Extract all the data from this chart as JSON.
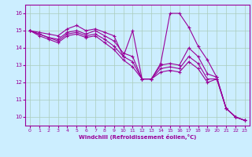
{
  "xlabel": "Windchill (Refroidissement éolien,°C)",
  "bg_color": "#cceeff",
  "line_color": "#990099",
  "grid_color": "#aaccbb",
  "xlim": [
    -0.5,
    23.5
  ],
  "ylim": [
    9.5,
    16.5
  ],
  "yticks": [
    10,
    11,
    12,
    13,
    14,
    15,
    16
  ],
  "xticks": [
    0,
    1,
    2,
    3,
    4,
    5,
    6,
    7,
    8,
    9,
    10,
    11,
    12,
    13,
    14,
    15,
    16,
    17,
    18,
    19,
    20,
    21,
    22,
    23
  ],
  "lines": [
    {
      "x": [
        0,
        1,
        2,
        3,
        4,
        5,
        6,
        7,
        8,
        9,
        10,
        11,
        12,
        13,
        14,
        15,
        16,
        17,
        18,
        19,
        20,
        21,
        22,
        23
      ],
      "y": [
        15.0,
        14.9,
        14.8,
        14.7,
        15.1,
        15.3,
        15.0,
        15.1,
        14.9,
        14.7,
        13.5,
        15.0,
        12.2,
        12.2,
        13.1,
        16.0,
        16.0,
        15.2,
        14.1,
        13.3,
        12.3,
        10.5,
        10.0,
        9.8
      ]
    },
    {
      "x": [
        0,
        1,
        2,
        3,
        4,
        5,
        6,
        7,
        8,
        9,
        10,
        11,
        12,
        13,
        14,
        15,
        16,
        17,
        18,
        19,
        20,
        21,
        22,
        23
      ],
      "y": [
        15.0,
        14.8,
        14.6,
        14.5,
        14.9,
        15.0,
        14.8,
        15.0,
        14.7,
        14.4,
        13.7,
        13.5,
        12.2,
        12.2,
        13.0,
        13.1,
        13.0,
        14.0,
        13.5,
        12.5,
        12.3,
        10.5,
        10.0,
        9.8
      ]
    },
    {
      "x": [
        0,
        1,
        2,
        3,
        4,
        5,
        6,
        7,
        8,
        9,
        10,
        11,
        12,
        13,
        14,
        15,
        16,
        17,
        18,
        19,
        20,
        21,
        22,
        23
      ],
      "y": [
        15.0,
        14.8,
        14.6,
        14.4,
        14.8,
        14.9,
        14.7,
        14.8,
        14.5,
        14.1,
        13.5,
        13.2,
        12.2,
        12.2,
        12.8,
        12.9,
        12.8,
        13.5,
        13.1,
        12.2,
        12.2,
        10.5,
        10.0,
        9.8
      ]
    },
    {
      "x": [
        0,
        1,
        2,
        3,
        4,
        5,
        6,
        7,
        8,
        9,
        10,
        11,
        12,
        13,
        14,
        15,
        16,
        17,
        18,
        19,
        20,
        21,
        22,
        23
      ],
      "y": [
        15.0,
        14.7,
        14.5,
        14.3,
        14.7,
        14.8,
        14.6,
        14.7,
        14.3,
        13.9,
        13.3,
        12.9,
        12.2,
        12.2,
        12.6,
        12.7,
        12.6,
        13.2,
        12.8,
        12.0,
        12.2,
        10.5,
        10.0,
        9.8
      ]
    }
  ]
}
